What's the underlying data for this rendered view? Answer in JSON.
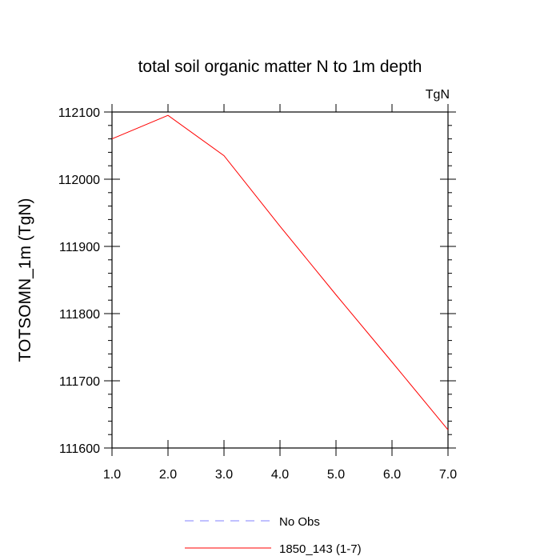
{
  "chart_data": {
    "type": "line",
    "title": "total soil organic matter N to 1m depth",
    "units_label": "TgN",
    "ylabel": "TOTSOMN_1m  (TgN)",
    "xlabel": "",
    "xlim": [
      1,
      7
    ],
    "ylim": [
      111600,
      112100
    ],
    "x_ticks": [
      1,
      2,
      3,
      4,
      5,
      6,
      7
    ],
    "x_tick_labels": [
      "1.0",
      "2.0",
      "3.0",
      "4.0",
      "5.0",
      "6.0",
      "7.0"
    ],
    "y_ticks": [
      111600,
      111700,
      111800,
      111900,
      112000,
      112100
    ],
    "y_tick_labels": [
      "111600",
      "111700",
      "111800",
      "111900",
      "112000",
      "112100"
    ],
    "grid": false,
    "legend_position": "bottom",
    "series": [
      {
        "name": "1850_143 (1-7)",
        "color": "#ff0000",
        "dash": "solid",
        "x": [
          1,
          2,
          3,
          4,
          5,
          6,
          7
        ],
        "y": [
          112060,
          112095,
          112035,
          111930,
          111828,
          111728,
          111627
        ]
      }
    ],
    "legend": [
      {
        "label": "No Obs",
        "color": "#8080ff",
        "dash": "dashed"
      },
      {
        "label": "1850_143 (1-7)",
        "color": "#ff0000",
        "dash": "solid"
      }
    ]
  }
}
